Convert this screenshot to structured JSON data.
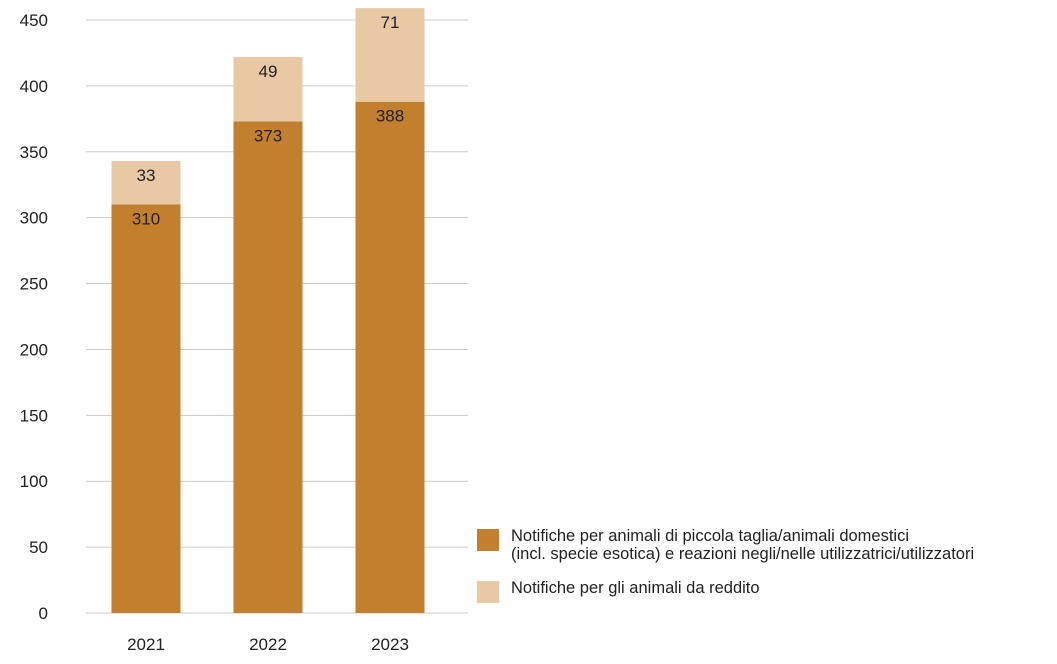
{
  "chart_data": {
    "type": "bar",
    "stacked": true,
    "categories": [
      "2021",
      "2022",
      "2023"
    ],
    "series": [
      {
        "name": "Notifiche per animali di piccola taglia/animali domestici\n(incl. specie esotica) e reazioni negli/nelle utilizzatrici/utilizzatori",
        "values": [
          310,
          373,
          388
        ],
        "color": "#c27f2e"
      },
      {
        "name": "Notifiche per gli animali da reddito",
        "values": [
          33,
          49,
          71
        ],
        "color": "#e8c9a4"
      }
    ],
    "ylim": [
      0,
      450
    ],
    "yticks": [
      0,
      50,
      100,
      150,
      200,
      250,
      300,
      350,
      400,
      450
    ],
    "grid": true,
    "legend_position": "bottom-right",
    "gridline_color": "#cccccc"
  }
}
